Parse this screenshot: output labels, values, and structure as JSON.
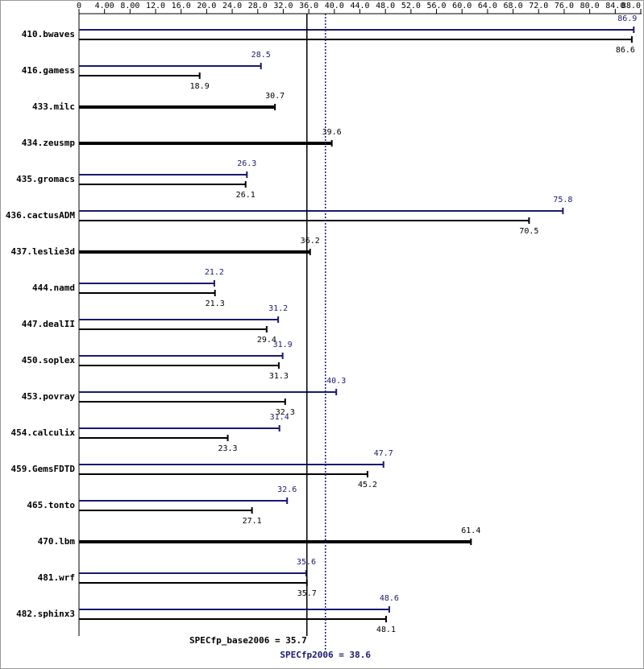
{
  "chart_data": {
    "type": "bar",
    "orientation": "horizontal",
    "categories": [
      "410.bwaves",
      "416.gamess",
      "433.milc",
      "434.zeusmp",
      "435.gromacs",
      "436.cactusADM",
      "437.leslie3d",
      "444.namd",
      "447.dealII",
      "450.soplex",
      "453.povray",
      "454.calculix",
      "459.GemsFDTD",
      "465.tonto",
      "470.lbm",
      "481.wrf",
      "482.sphinx3"
    ],
    "series": [
      {
        "color": "#191970",
        "values": [
          86.9,
          28.5,
          null,
          null,
          26.3,
          75.8,
          null,
          21.2,
          31.2,
          31.9,
          40.3,
          31.4,
          47.7,
          32.6,
          null,
          35.6,
          48.6
        ]
      },
      {
        "color": "#000000",
        "values": [
          86.6,
          18.9,
          30.7,
          39.6,
          26.1,
          70.5,
          36.2,
          21.3,
          29.4,
          31.3,
          32.3,
          23.3,
          45.2,
          27.1,
          61.4,
          35.7,
          48.1
        ]
      }
    ],
    "xlim": [
      0,
      88
    ],
    "xticks": [
      0,
      {
        "value": 4,
        "label": "4.00"
      },
      {
        "value": 8,
        "label": "8.00"
      },
      {
        "value": 12,
        "label": "12.0"
      },
      {
        "value": 16,
        "label": "16.0"
      },
      {
        "value": 20,
        "label": "20.0"
      },
      {
        "value": 24,
        "label": "24.0"
      },
      {
        "value": 28,
        "label": "28.0"
      },
      {
        "value": 32,
        "label": "32.0"
      },
      {
        "value": 36,
        "label": "36.0"
      },
      {
        "value": 40,
        "label": "40.0"
      },
      {
        "value": 44,
        "label": "44.0"
      },
      {
        "value": 48,
        "label": "48.0"
      },
      {
        "value": 52,
        "label": "52.0"
      },
      {
        "value": 56,
        "label": "56.0"
      },
      {
        "value": 60,
        "label": "60.0"
      },
      {
        "value": 64,
        "label": "64.0"
      },
      {
        "value": 68,
        "label": "68.0"
      },
      {
        "value": 72,
        "label": "72.0"
      },
      {
        "value": 76,
        "label": "76.0"
      },
      {
        "value": 80,
        "label": "80.0"
      },
      {
        "value": 84,
        "label": "84.0"
      },
      {
        "value": 88,
        "label": "88.0"
      }
    ],
    "reference_lines": [
      {
        "label": "SPECfp_base2006 = 35.7",
        "value": 35.7,
        "color": "#000000",
        "style": "solid"
      },
      {
        "label": "SPECfp2006 = 38.6",
        "value": 38.6,
        "color": "#191970",
        "style": "dotted"
      }
    ]
  }
}
